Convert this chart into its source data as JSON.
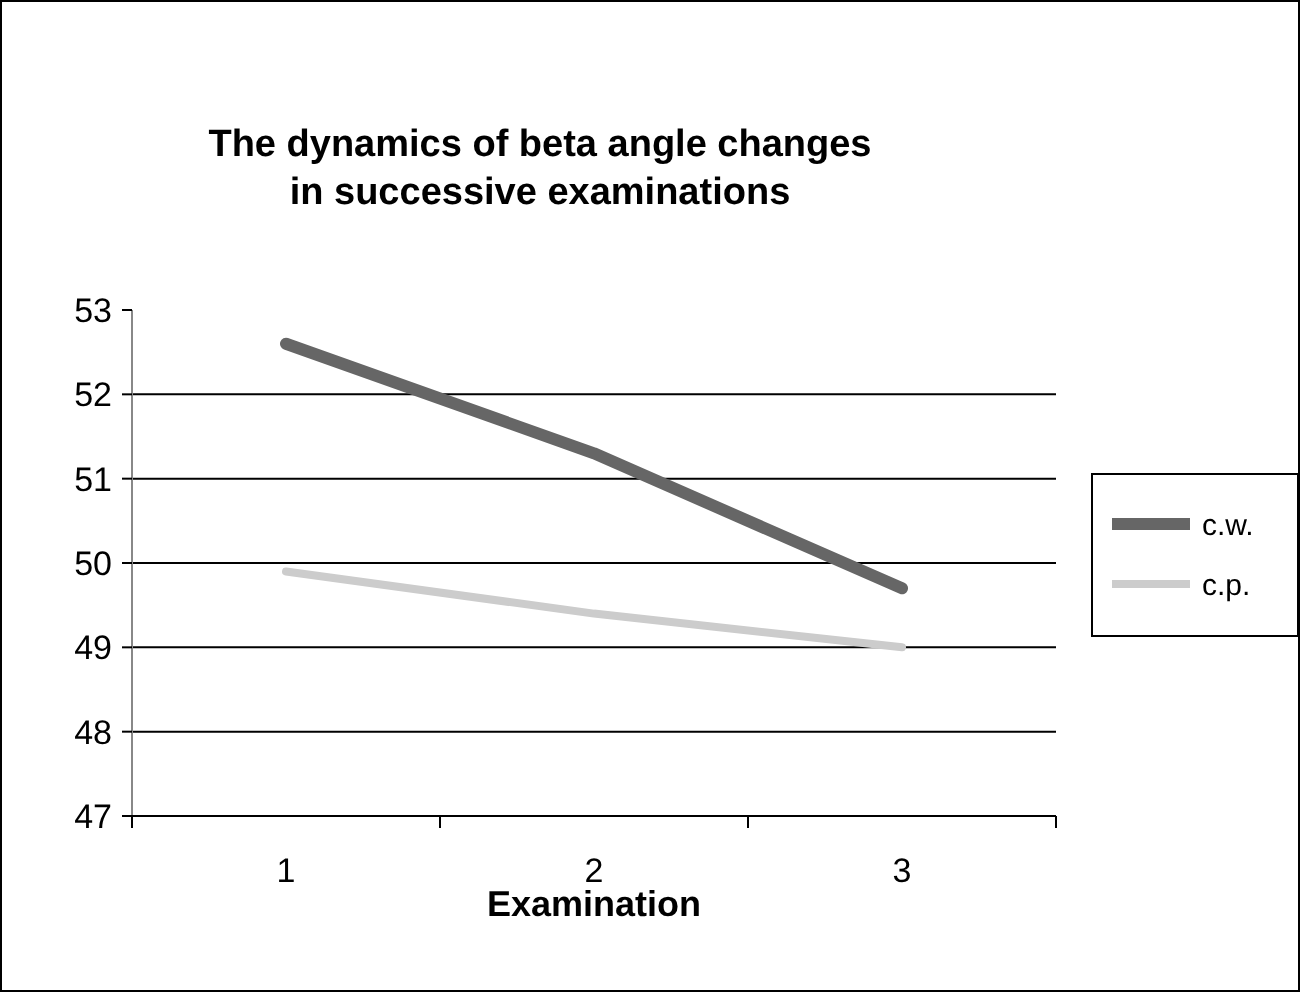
{
  "chart_data": {
    "type": "line",
    "title": "The dynamics of beta angle changes\nin successive examinations",
    "xlabel": "Examination",
    "categories": [
      "1",
      "2",
      "3"
    ],
    "series": [
      {
        "name": "c.w.",
        "color": "#666666",
        "values": [
          52.6,
          51.3,
          49.7
        ]
      },
      {
        "name": "c.p.",
        "color": "#cccccc",
        "values": [
          49.9,
          49.4,
          49.0
        ]
      }
    ],
    "ylim": [
      47,
      53
    ],
    "yticks": [
      47,
      48,
      49,
      50,
      51,
      52,
      53
    ],
    "grid": "y",
    "legend": "right",
    "marker": "none",
    "line_style": "solid"
  }
}
